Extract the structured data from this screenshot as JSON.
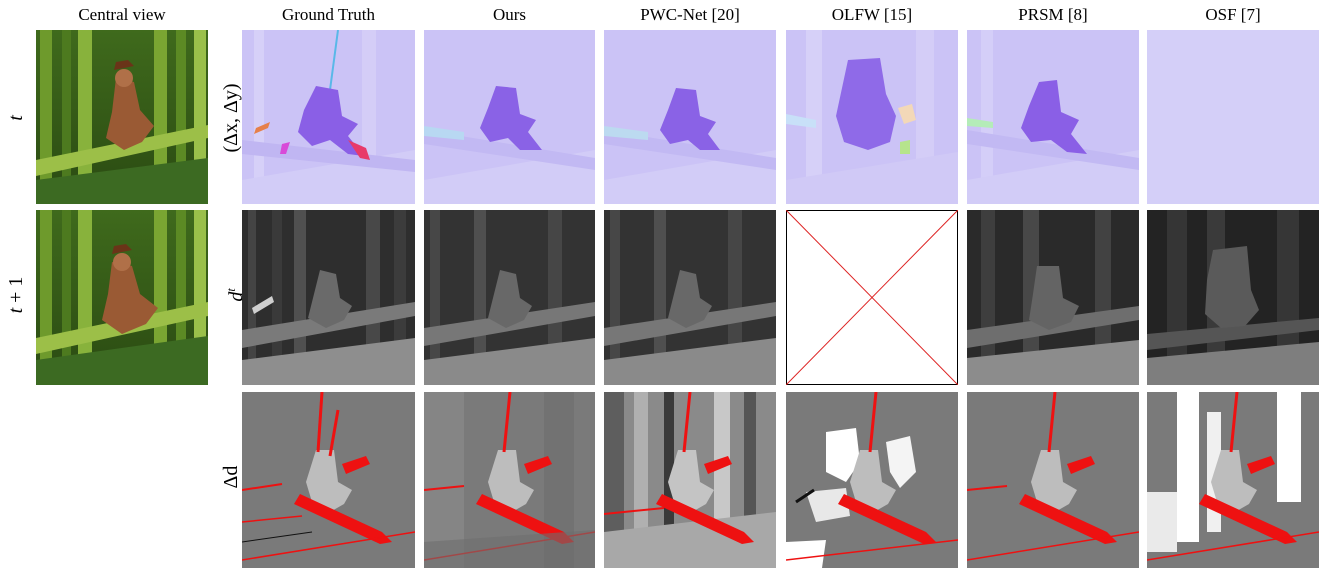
{
  "headers": {
    "central_view": "Central view",
    "ground_truth": "Ground Truth",
    "ours": "Ours",
    "pwc": "PWC-Net [20]",
    "olfw": "OLFW [15]",
    "prsm": "PRSM [8]",
    "osf": "OSF [7]"
  },
  "left_labels": {
    "t": "t",
    "t1_var": "t",
    "t1_rest": " + 1"
  },
  "row_labels": {
    "flow": "(Δx, Δy)",
    "disp_base": "d",
    "disp_sup": "t",
    "delta": "Δd"
  },
  "colors": {
    "flow_bg": "#c8bff5",
    "flow_figure": "#8a62e6",
    "disp_bg": "#6b6b6b",
    "delta_bg": "#7a7a7a",
    "error_red": "#ee1111",
    "missing_cross": "#dd2222"
  }
}
